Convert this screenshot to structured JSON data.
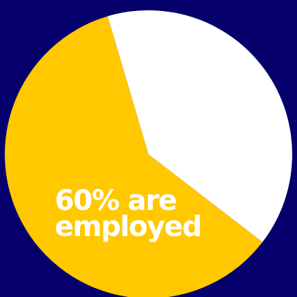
{
  "chart_data": {
    "type": "pie",
    "slices": [
      {
        "label": "employed",
        "value": 60,
        "color": "#ffc800"
      },
      {
        "label": "",
        "value": 40,
        "color": "#ffffff"
      }
    ],
    "annotation": {
      "line1": "60% are",
      "line2": "employed"
    },
    "title": "",
    "legend": "none"
  },
  "colors": {
    "background": "#05006b",
    "accent": "#ffc800",
    "text": "#ffffff"
  }
}
